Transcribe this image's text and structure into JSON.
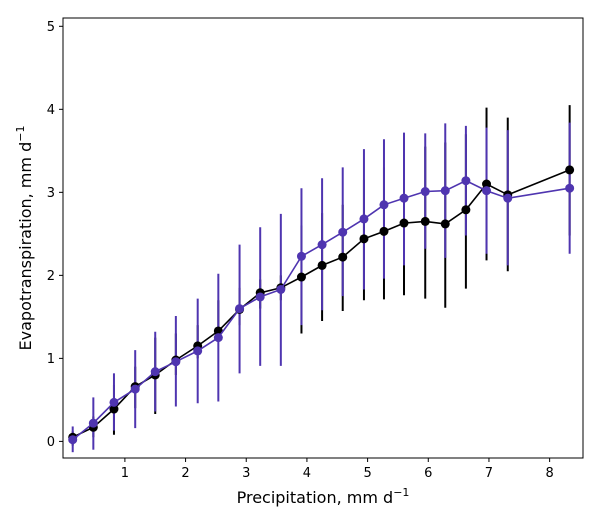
{
  "chart_data": {
    "type": "line",
    "title": "",
    "xlabel": "Precipitation,  mm d",
    "xlabel_sup": "−1",
    "ylabel": "Evapotranspiration,  mm d",
    "ylabel_sup": "−1",
    "xlim": [
      -0.02,
      8.55
    ],
    "ylim": [
      -0.2,
      5.1
    ],
    "xticks": [
      1,
      2,
      3,
      4,
      5,
      6,
      7,
      8
    ],
    "yticks": [
      0,
      1,
      2,
      3,
      4,
      5
    ],
    "grid": false,
    "series": [
      {
        "name": "black",
        "color": "#000000",
        "points": [
          {
            "x": 0.14,
            "y": 0.05,
            "lo": -0.05,
            "hi": 0.12
          },
          {
            "x": 0.48,
            "y": 0.17,
            "lo": 0.05,
            "hi": 0.3
          },
          {
            "x": 0.82,
            "y": 0.39,
            "lo": 0.08,
            "hi": 0.68
          },
          {
            "x": 1.17,
            "y": 0.66,
            "lo": 0.4,
            "hi": 0.9
          },
          {
            "x": 1.5,
            "y": 0.8,
            "lo": 0.33,
            "hi": 1.25
          },
          {
            "x": 1.84,
            "y": 0.98,
            "lo": 0.8,
            "hi": 1.3
          },
          {
            "x": 2.2,
            "y": 1.15,
            "lo": 1.0,
            "hi": 1.4
          },
          {
            "x": 2.54,
            "y": 1.33,
            "lo": 1.2,
            "hi": 1.7
          },
          {
            "x": 2.89,
            "y": 1.59,
            "lo": 1.4,
            "hi": 1.85
          },
          {
            "x": 3.23,
            "y": 1.79,
            "lo": 1.6,
            "hi": 1.95
          },
          {
            "x": 3.57,
            "y": 1.85,
            "lo": 1.7,
            "hi": 2.0
          },
          {
            "x": 3.91,
            "y": 1.98,
            "lo": 1.3,
            "hi": 2.6
          },
          {
            "x": 4.25,
            "y": 2.12,
            "lo": 1.45,
            "hi": 2.75
          },
          {
            "x": 4.59,
            "y": 2.22,
            "lo": 1.57,
            "hi": 2.85
          },
          {
            "x": 4.94,
            "y": 2.44,
            "lo": 1.7,
            "hi": 3.15
          },
          {
            "x": 5.27,
            "y": 2.53,
            "lo": 1.71,
            "hi": 3.3
          },
          {
            "x": 5.6,
            "y": 2.63,
            "lo": 1.76,
            "hi": 3.45
          },
          {
            "x": 5.95,
            "y": 2.65,
            "lo": 1.72,
            "hi": 3.55
          },
          {
            "x": 6.28,
            "y": 2.62,
            "lo": 1.61,
            "hi": 3.6
          },
          {
            "x": 6.62,
            "y": 2.79,
            "lo": 1.84,
            "hi": 3.7
          },
          {
            "x": 6.96,
            "y": 3.1,
            "lo": 2.18,
            "hi": 4.02
          },
          {
            "x": 7.31,
            "y": 2.97,
            "lo": 2.05,
            "hi": 3.9
          },
          {
            "x": 8.33,
            "y": 3.27,
            "lo": 2.48,
            "hi": 4.05
          }
        ]
      },
      {
        "name": "purple",
        "color": "#4f35b0",
        "points": [
          {
            "x": 0.14,
            "y": 0.02,
            "lo": -0.13,
            "hi": 0.18
          },
          {
            "x": 0.48,
            "y": 0.22,
            "lo": -0.1,
            "hi": 0.53
          },
          {
            "x": 0.82,
            "y": 0.47,
            "lo": 0.13,
            "hi": 0.82
          },
          {
            "x": 1.17,
            "y": 0.63,
            "lo": 0.16,
            "hi": 1.1
          },
          {
            "x": 1.5,
            "y": 0.84,
            "lo": 0.36,
            "hi": 1.32
          },
          {
            "x": 1.84,
            "y": 0.96,
            "lo": 0.42,
            "hi": 1.51
          },
          {
            "x": 2.2,
            "y": 1.09,
            "lo": 0.46,
            "hi": 1.72
          },
          {
            "x": 2.54,
            "y": 1.25,
            "lo": 0.48,
            "hi": 2.02
          },
          {
            "x": 2.89,
            "y": 1.6,
            "lo": 0.82,
            "hi": 2.37
          },
          {
            "x": 3.23,
            "y": 1.74,
            "lo": 0.91,
            "hi": 2.58
          },
          {
            "x": 3.57,
            "y": 1.83,
            "lo": 0.91,
            "hi": 2.74
          },
          {
            "x": 3.91,
            "y": 2.23,
            "lo": 1.4,
            "hi": 3.05
          },
          {
            "x": 4.25,
            "y": 2.37,
            "lo": 1.58,
            "hi": 3.17
          },
          {
            "x": 4.59,
            "y": 2.52,
            "lo": 1.75,
            "hi": 3.3
          },
          {
            "x": 4.94,
            "y": 2.68,
            "lo": 1.83,
            "hi": 3.52
          },
          {
            "x": 5.27,
            "y": 2.85,
            "lo": 1.96,
            "hi": 3.64
          },
          {
            "x": 5.6,
            "y": 2.93,
            "lo": 2.12,
            "hi": 3.72
          },
          {
            "x": 5.95,
            "y": 3.01,
            "lo": 2.32,
            "hi": 3.71
          },
          {
            "x": 6.28,
            "y": 3.02,
            "lo": 2.21,
            "hi": 3.83
          },
          {
            "x": 6.62,
            "y": 3.14,
            "lo": 2.48,
            "hi": 3.8
          },
          {
            "x": 6.96,
            "y": 3.02,
            "lo": 2.26,
            "hi": 3.78
          },
          {
            "x": 7.31,
            "y": 2.93,
            "lo": 2.12,
            "hi": 3.75
          },
          {
            "x": 8.33,
            "y": 3.05,
            "lo": 2.26,
            "hi": 3.84
          }
        ]
      }
    ]
  }
}
